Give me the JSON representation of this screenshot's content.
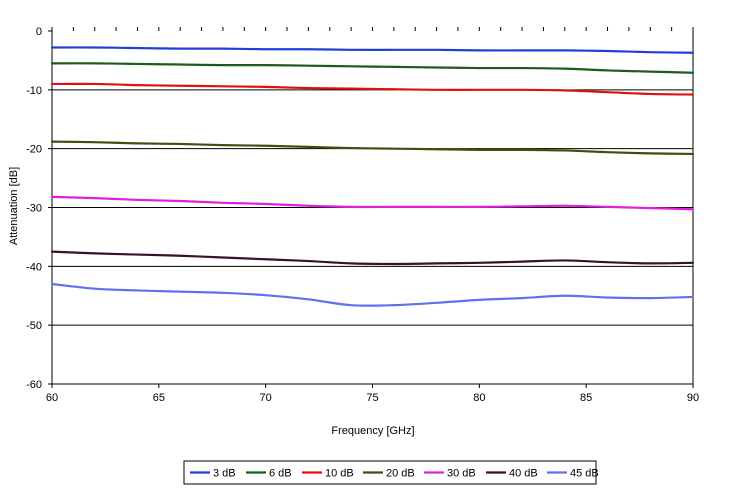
{
  "chart_data": {
    "type": "line",
    "title": "",
    "xlabel": "Frequency [GHz]",
    "ylabel": "Attenuation [dB]",
    "xlim": [
      60,
      90
    ],
    "ylim": [
      -60,
      0
    ],
    "xticks": [
      60,
      65,
      70,
      75,
      80,
      85,
      90
    ],
    "yticks": [
      0,
      -10,
      -20,
      -30,
      -40,
      -50,
      -60
    ],
    "grid": "horizontal",
    "legend_position": "bottom",
    "x": [
      60,
      62,
      64,
      66,
      68,
      70,
      72,
      74,
      76,
      78,
      80,
      82,
      84,
      86,
      88,
      90
    ],
    "series": [
      {
        "name": "3 dB",
        "color": "#1f3fd8",
        "values": [
          -2.8,
          -2.8,
          -2.9,
          -3.0,
          -3.0,
          -3.1,
          -3.1,
          -3.2,
          -3.2,
          -3.2,
          -3.3,
          -3.3,
          -3.3,
          -3.4,
          -3.6,
          -3.7
        ]
      },
      {
        "name": "6 dB",
        "color": "#1a5c1a",
        "values": [
          -5.5,
          -5.5,
          -5.6,
          -5.7,
          -5.8,
          -5.8,
          -5.9,
          -6.0,
          -6.1,
          -6.2,
          -6.3,
          -6.3,
          -6.4,
          -6.7,
          -6.9,
          -7.1
        ]
      },
      {
        "name": "10 dB",
        "color": "#e01010",
        "values": [
          -9.0,
          -9.0,
          -9.2,
          -9.3,
          -9.4,
          -9.5,
          -9.7,
          -9.8,
          -9.9,
          -10.0,
          -10.0,
          -10.0,
          -10.1,
          -10.4,
          -10.7,
          -10.8
        ]
      },
      {
        "name": "20 dB",
        "color": "#4a4a10",
        "values": [
          -18.8,
          -18.9,
          -19.1,
          -19.2,
          -19.4,
          -19.5,
          -19.7,
          -19.9,
          -20.0,
          -20.1,
          -20.2,
          -20.2,
          -20.3,
          -20.6,
          -20.8,
          -20.9
        ]
      },
      {
        "name": "30 dB",
        "color": "#e020e0",
        "values": [
          -28.2,
          -28.4,
          -28.7,
          -28.9,
          -29.2,
          -29.4,
          -29.7,
          -29.9,
          -29.9,
          -29.9,
          -29.9,
          -29.8,
          -29.7,
          -29.9,
          -30.1,
          -30.3
        ]
      },
      {
        "name": "40 dB",
        "color": "#3a1030",
        "values": [
          -37.5,
          -37.8,
          -38.0,
          -38.2,
          -38.5,
          -38.8,
          -39.1,
          -39.5,
          -39.6,
          -39.5,
          -39.4,
          -39.2,
          -39.0,
          -39.3,
          -39.5,
          -39.4
        ]
      },
      {
        "name": "45 dB",
        "color": "#6070f0",
        "values": [
          -43.0,
          -43.8,
          -44.1,
          -44.3,
          -44.5,
          -44.9,
          -45.6,
          -46.6,
          -46.6,
          -46.2,
          -45.7,
          -45.4,
          -45.0,
          -45.3,
          -45.4,
          -45.2
        ]
      }
    ]
  }
}
